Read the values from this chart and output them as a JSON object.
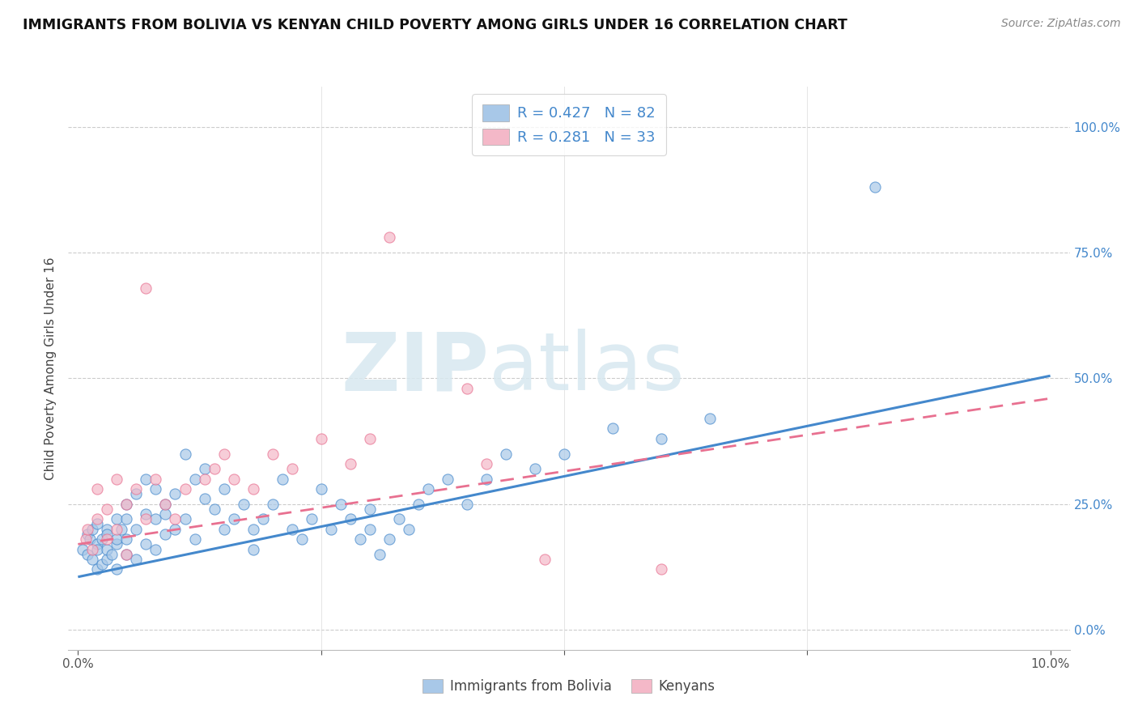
{
  "title": "IMMIGRANTS FROM BOLIVIA VS KENYAN CHILD POVERTY AMONG GIRLS UNDER 16 CORRELATION CHART",
  "source": "Source: ZipAtlas.com",
  "ylabel": "Child Poverty Among Girls Under 16",
  "ytick_labels": [
    "0.0%",
    "25.0%",
    "50.0%",
    "75.0%",
    "100.0%"
  ],
  "ytick_values": [
    0.0,
    0.25,
    0.5,
    0.75,
    1.0
  ],
  "xlim": [
    0.0,
    0.1
  ],
  "ylim": [
    0.0,
    1.05
  ],
  "legend1_R": "0.427",
  "legend1_N": "82",
  "legend2_R": "0.281",
  "legend2_N": "33",
  "scatter_color_blue": "#a8c8e8",
  "scatter_color_pink": "#f4b8c8",
  "line_color_blue": "#4488cc",
  "line_color_pink": "#e87090",
  "legend_label1": "Immigrants from Bolivia",
  "legend_label2": "Kenyans",
  "bolivia_x": [
    0.0005,
    0.001,
    0.001,
    0.0012,
    0.0015,
    0.0015,
    0.002,
    0.002,
    0.002,
    0.002,
    0.0025,
    0.0025,
    0.003,
    0.003,
    0.003,
    0.003,
    0.0035,
    0.004,
    0.004,
    0.004,
    0.004,
    0.0045,
    0.005,
    0.005,
    0.005,
    0.005,
    0.006,
    0.006,
    0.006,
    0.007,
    0.007,
    0.007,
    0.008,
    0.008,
    0.008,
    0.009,
    0.009,
    0.009,
    0.01,
    0.01,
    0.011,
    0.011,
    0.012,
    0.012,
    0.013,
    0.013,
    0.014,
    0.015,
    0.015,
    0.016,
    0.017,
    0.018,
    0.018,
    0.019,
    0.02,
    0.021,
    0.022,
    0.023,
    0.024,
    0.025,
    0.026,
    0.027,
    0.028,
    0.029,
    0.03,
    0.03,
    0.031,
    0.032,
    0.033,
    0.034,
    0.035,
    0.036,
    0.038,
    0.04,
    0.042,
    0.044,
    0.047,
    0.05,
    0.055,
    0.06,
    0.065,
    0.082
  ],
  "bolivia_y": [
    0.16,
    0.19,
    0.15,
    0.18,
    0.14,
    0.2,
    0.17,
    0.12,
    0.16,
    0.21,
    0.18,
    0.13,
    0.2,
    0.14,
    0.16,
    0.19,
    0.15,
    0.22,
    0.17,
    0.12,
    0.18,
    0.2,
    0.25,
    0.15,
    0.18,
    0.22,
    0.27,
    0.2,
    0.14,
    0.23,
    0.3,
    0.17,
    0.28,
    0.22,
    0.16,
    0.25,
    0.19,
    0.23,
    0.2,
    0.27,
    0.35,
    0.22,
    0.3,
    0.18,
    0.26,
    0.32,
    0.24,
    0.28,
    0.2,
    0.22,
    0.25,
    0.2,
    0.16,
    0.22,
    0.25,
    0.3,
    0.2,
    0.18,
    0.22,
    0.28,
    0.2,
    0.25,
    0.22,
    0.18,
    0.24,
    0.2,
    0.15,
    0.18,
    0.22,
    0.2,
    0.25,
    0.28,
    0.3,
    0.25,
    0.3,
    0.35,
    0.32,
    0.35,
    0.4,
    0.38,
    0.42,
    0.88
  ],
  "kenya_x": [
    0.0008,
    0.001,
    0.0015,
    0.002,
    0.002,
    0.003,
    0.003,
    0.004,
    0.004,
    0.005,
    0.005,
    0.006,
    0.007,
    0.007,
    0.008,
    0.009,
    0.01,
    0.011,
    0.013,
    0.014,
    0.015,
    0.016,
    0.018,
    0.02,
    0.022,
    0.025,
    0.028,
    0.03,
    0.032,
    0.04,
    0.042,
    0.048,
    0.06
  ],
  "kenya_y": [
    0.18,
    0.2,
    0.16,
    0.22,
    0.28,
    0.24,
    0.18,
    0.2,
    0.3,
    0.15,
    0.25,
    0.28,
    0.22,
    0.68,
    0.3,
    0.25,
    0.22,
    0.28,
    0.3,
    0.32,
    0.35,
    0.3,
    0.28,
    0.35,
    0.32,
    0.38,
    0.33,
    0.38,
    0.78,
    0.48,
    0.33,
    0.14,
    0.12
  ],
  "bolivia_line_x": [
    0.0,
    0.1
  ],
  "bolivia_line_y": [
    0.105,
    0.505
  ],
  "kenya_line_x": [
    0.0,
    0.1
  ],
  "kenya_line_y": [
    0.17,
    0.46
  ]
}
